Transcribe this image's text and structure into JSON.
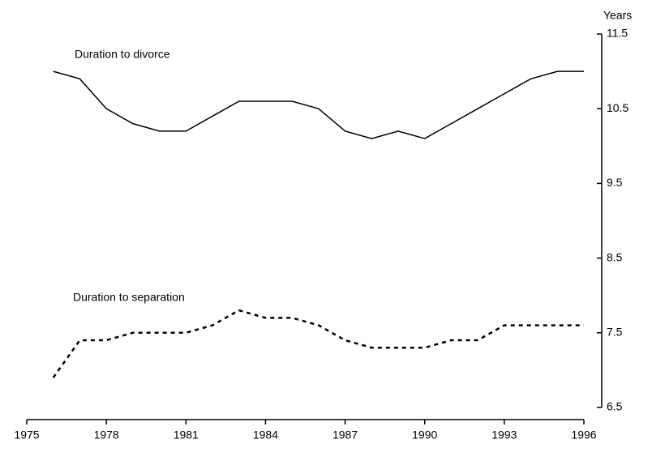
{
  "chart_data": {
    "type": "line",
    "y_axis_label": "Years",
    "x": [
      1976,
      1977,
      1978,
      1979,
      1980,
      1981,
      1982,
      1983,
      1984,
      1985,
      1986,
      1987,
      1988,
      1989,
      1990,
      1991,
      1992,
      1993,
      1994,
      1995,
      1996
    ],
    "series": [
      {
        "name": "Duration to divorce",
        "color": "#000000",
        "line_style": "solid",
        "values": [
          11.0,
          10.9,
          10.5,
          10.3,
          10.2,
          10.2,
          10.4,
          10.6,
          10.6,
          10.6,
          10.5,
          10.2,
          10.1,
          10.2,
          10.1,
          10.3,
          10.5,
          10.7,
          10.9,
          11.0,
          11.0
        ]
      },
      {
        "name": "Duration to separation",
        "color": "#000000",
        "line_style": "dashed",
        "values": [
          6.9,
          7.4,
          7.4,
          7.5,
          7.5,
          7.5,
          7.6,
          7.8,
          7.7,
          7.7,
          7.6,
          7.4,
          7.3,
          7.3,
          7.3,
          7.4,
          7.4,
          7.6,
          7.6,
          7.6,
          7.6
        ]
      }
    ],
    "xlim": [
      1975,
      1996
    ],
    "xticks": [
      1975,
      1978,
      1981,
      1984,
      1987,
      1990,
      1993,
      1996
    ],
    "ylim": [
      6.5,
      11.5
    ],
    "yticks": [
      6.5,
      7.5,
      8.5,
      9.5,
      10.5,
      11.5
    ],
    "y_axis_side": "right"
  }
}
